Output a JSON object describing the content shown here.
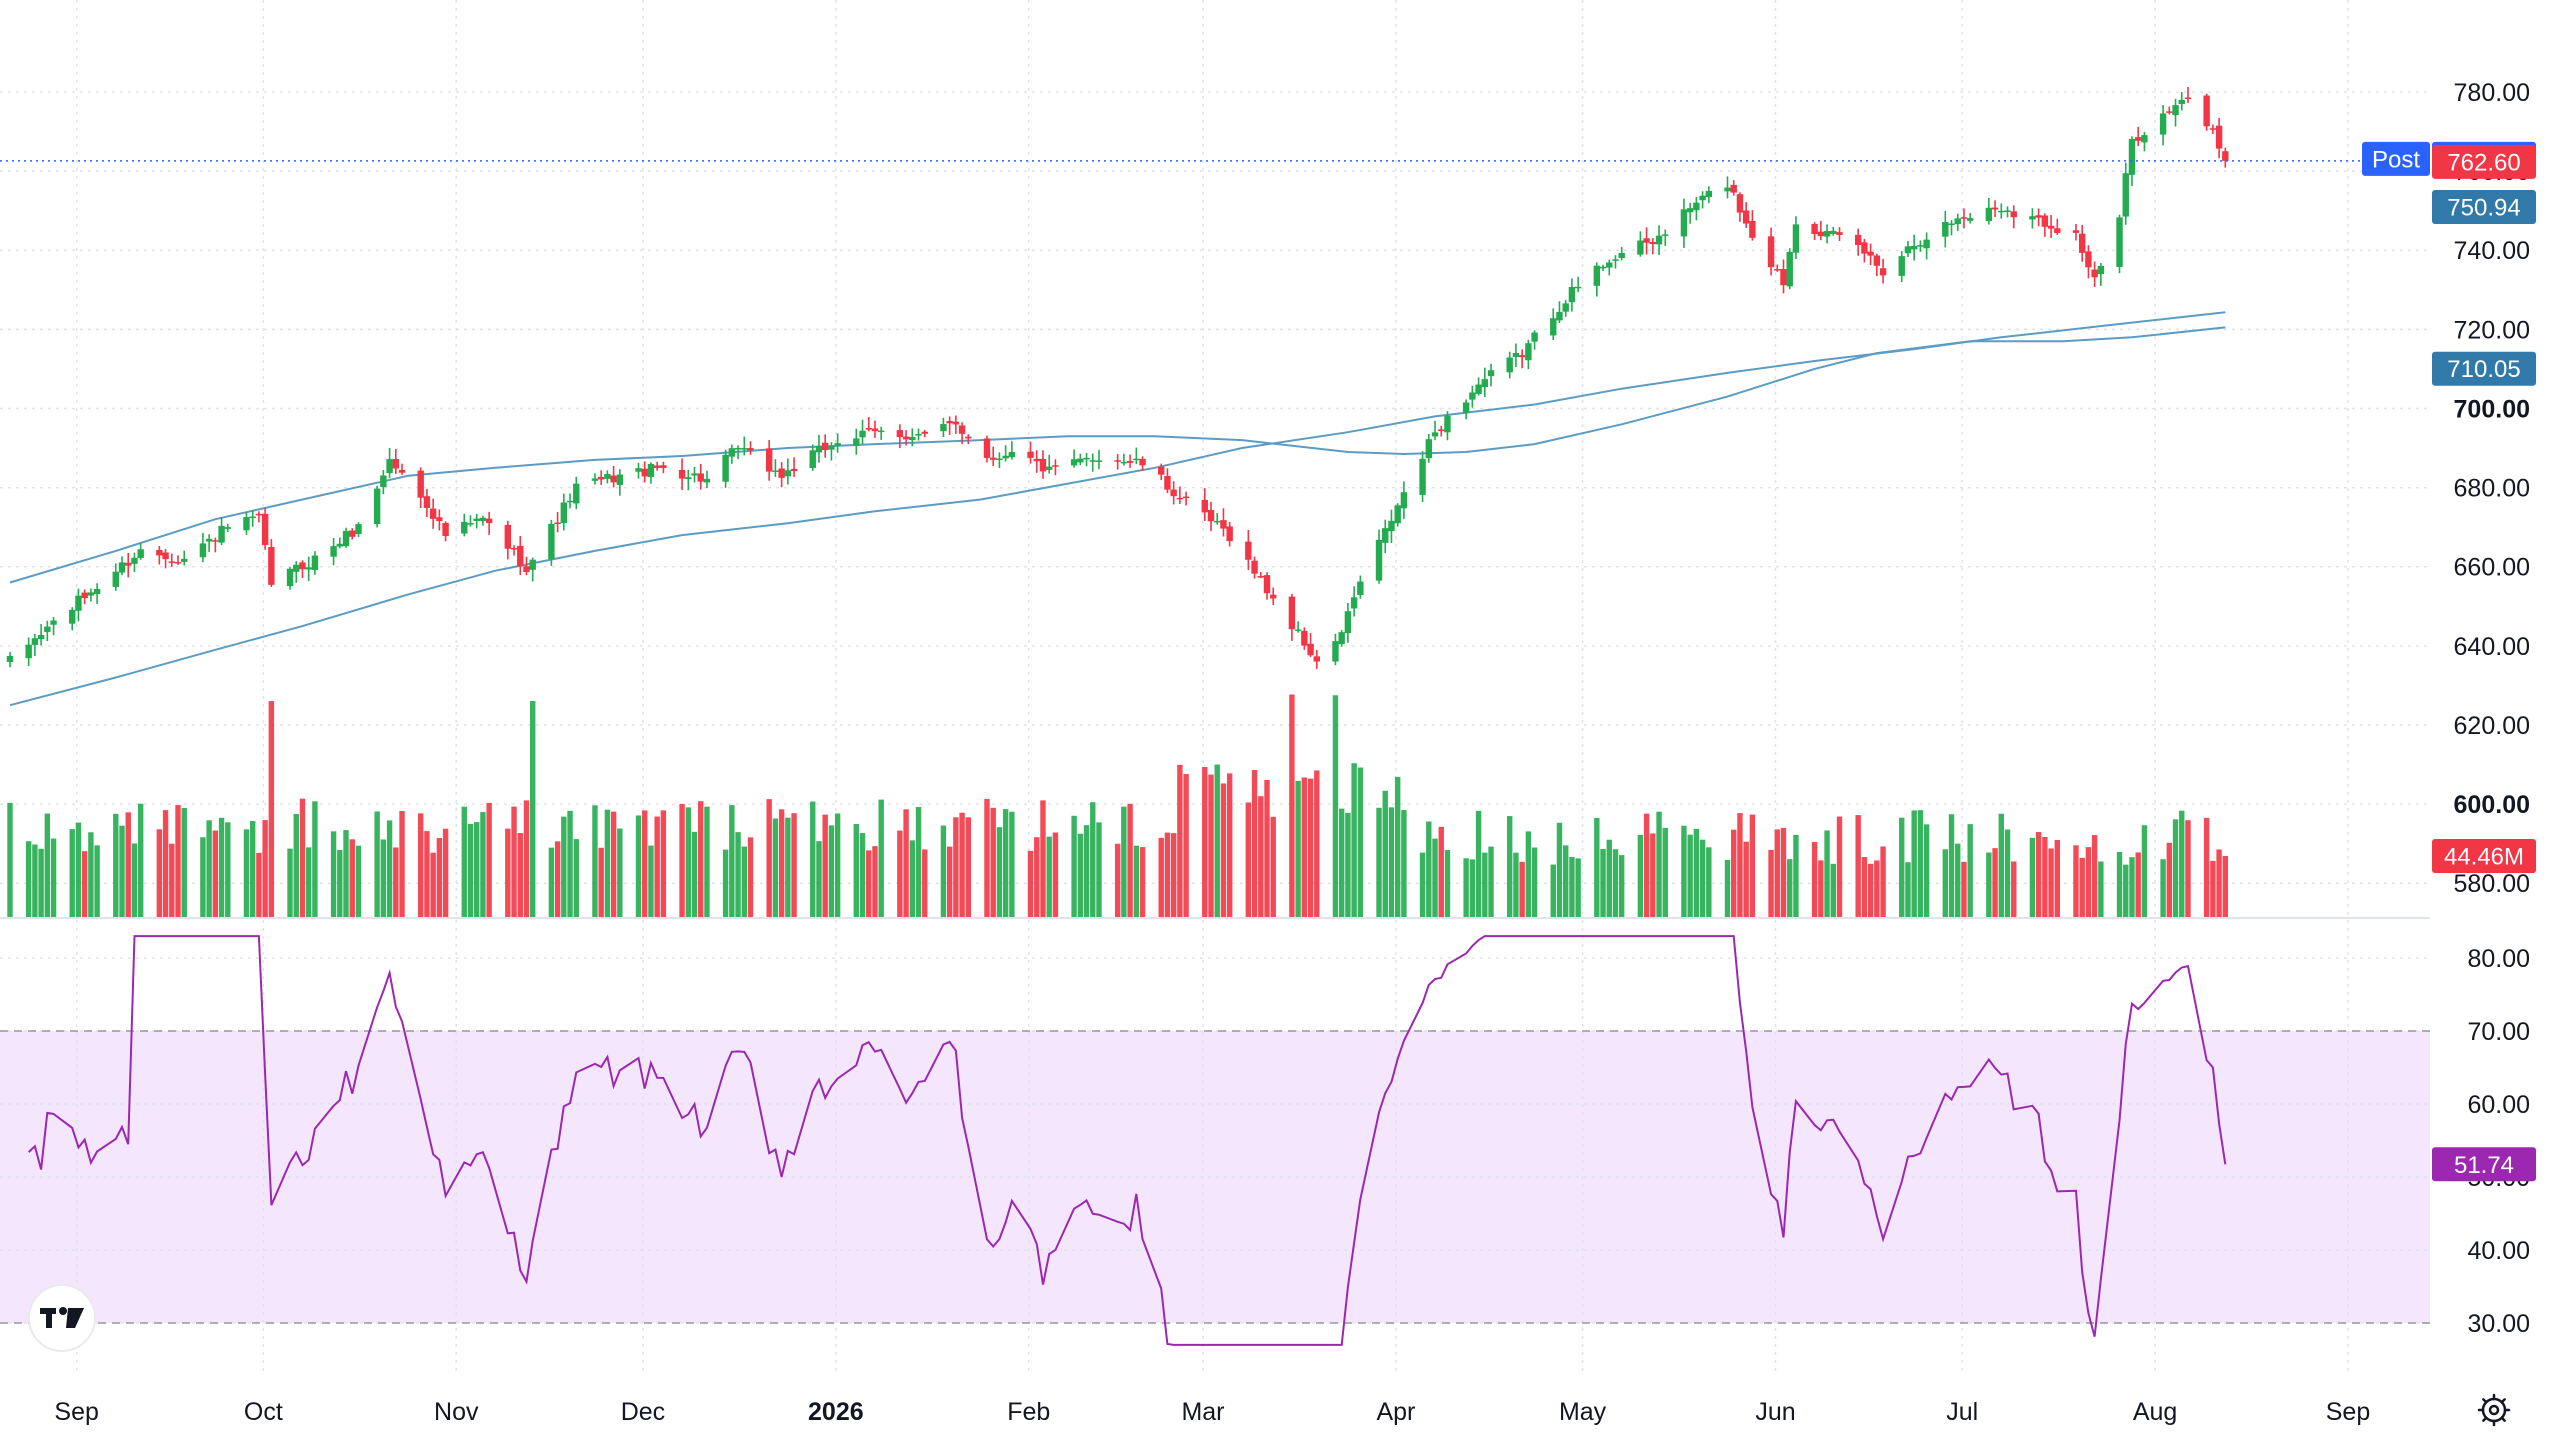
{
  "chart_data": [
    {
      "type": "candlestick",
      "title": "",
      "y_axis": {
        "ticks": [
          "780.00",
          "760.00",
          "740.00",
          "720.00",
          "700.00",
          "680.00",
          "660.00",
          "640.00",
          "620.00",
          "600.00",
          "580.00"
        ],
        "tick_values": [
          780,
          760,
          740,
          720,
          700,
          680,
          660,
          640,
          620,
          600,
          580
        ],
        "bold_ticks": [
          "700.00",
          "600.00"
        ],
        "ylim": [
          570,
          787
        ]
      },
      "x_axis": {
        "labels": [
          "Sep",
          "Oct",
          "Nov",
          "Dec",
          "2026",
          "Feb",
          "Mar",
          "Apr",
          "May",
          "Jun",
          "Jul",
          "Aug",
          "Sep"
        ],
        "bold_labels": [
          "2026"
        ],
        "start_date": "2025-08-29",
        "end_date": "2026-09-19"
      },
      "price_anchors": [
        [
          "2025-08-29",
          636
        ],
        [
          "2025-09-05",
          646
        ],
        [
          "2025-09-12",
          655
        ],
        [
          "2025-09-19",
          664
        ],
        [
          "2025-09-26",
          662
        ],
        [
          "2025-10-03",
          670
        ],
        [
          "2025-10-08",
          672
        ],
        [
          "2025-10-10",
          656
        ],
        [
          "2025-10-17",
          662
        ],
        [
          "2025-10-24",
          670
        ],
        [
          "2025-10-29",
          687
        ],
        [
          "2025-11-04",
          676
        ],
        [
          "2025-11-07",
          668
        ],
        [
          "2025-11-13",
          672
        ],
        [
          "2025-11-20",
          660
        ],
        [
          "2025-11-21",
          662
        ],
        [
          "2025-11-28",
          680
        ],
        [
          "2025-12-05",
          683
        ],
        [
          "2025-12-12",
          685
        ],
        [
          "2025-12-19",
          682
        ],
        [
          "2025-12-24",
          690
        ],
        [
          "2025-12-31",
          683
        ],
        [
          "2026-01-09",
          692
        ],
        [
          "2026-01-16",
          694
        ],
        [
          "2026-01-23",
          693
        ],
        [
          "2026-01-28",
          696
        ],
        [
          "2026-02-03",
          687
        ],
        [
          "2026-02-06",
          690
        ],
        [
          "2026-02-12",
          684
        ],
        [
          "2026-02-20",
          688
        ],
        [
          "2026-02-27",
          686
        ],
        [
          "2026-03-06",
          676
        ],
        [
          "2026-03-13",
          668
        ],
        [
          "2026-03-20",
          652
        ],
        [
          "2026-03-27",
          636
        ],
        [
          "2026-03-30",
          640
        ],
        [
          "2026-04-03",
          656
        ],
        [
          "2026-04-08",
          672
        ],
        [
          "2026-04-15",
          694
        ],
        [
          "2026-04-22",
          706
        ],
        [
          "2026-04-29",
          714
        ],
        [
          "2026-05-06",
          728
        ],
        [
          "2026-05-13",
          738
        ],
        [
          "2026-05-20",
          742
        ],
        [
          "2026-05-27",
          752
        ],
        [
          "2026-06-01",
          757
        ],
        [
          "2026-06-05",
          744
        ],
        [
          "2026-06-10",
          732
        ],
        [
          "2026-06-12",
          748
        ],
        [
          "2026-06-17",
          744
        ],
        [
          "2026-06-22",
          741
        ],
        [
          "2026-06-26",
          735
        ],
        [
          "2026-07-01",
          742
        ],
        [
          "2026-07-08",
          748
        ],
        [
          "2026-07-15",
          751
        ],
        [
          "2026-07-22",
          747
        ],
        [
          "2026-07-27",
          744
        ],
        [
          "2026-07-30",
          732
        ],
        [
          "2026-08-03",
          748
        ],
        [
          "2026-08-05",
          768
        ],
        [
          "2026-08-10",
          774
        ],
        [
          "2026-08-14",
          778
        ],
        [
          "2026-08-18",
          770
        ],
        [
          "2026-08-20",
          762.6
        ]
      ],
      "moving_averages": [
        {
          "name": "",
          "color": "#5b9cc4",
          "points": [
            [
              "2025-08-29",
              625
            ],
            [
              "2025-09-15",
              632
            ],
            [
              "2025-10-01",
              639
            ],
            [
              "2025-10-15",
              645
            ],
            [
              "2025-11-01",
              653
            ],
            [
              "2025-11-15",
              659
            ],
            [
              "2025-12-01",
              664
            ],
            [
              "2025-12-15",
              668
            ],
            [
              "2026-01-01",
              671
            ],
            [
              "2026-01-15",
              674
            ],
            [
              "2026-02-01",
              677
            ],
            [
              "2026-02-15",
              681
            ],
            [
              "2026-03-01",
              685
            ],
            [
              "2026-03-15",
              690
            ],
            [
              "2026-04-01",
              694
            ],
            [
              "2026-04-15",
              698
            ],
            [
              "2026-05-01",
              701
            ],
            [
              "2026-05-15",
              705
            ],
            [
              "2026-06-01",
              709
            ],
            [
              "2026-06-15",
              712
            ],
            [
              "2026-07-01",
              715
            ],
            [
              "2026-07-15",
              718
            ],
            [
              "2026-08-01",
              721
            ],
            [
              "2026-08-20",
              724.3
            ]
          ]
        },
        {
          "name": "",
          "color": "#5b9cc4",
          "points": [
            [
              "2025-08-29",
              656
            ],
            [
              "2025-09-15",
              664
            ],
            [
              "2025-10-01",
              672
            ],
            [
              "2025-10-15",
              677
            ],
            [
              "2025-11-01",
              683
            ],
            [
              "2025-11-15",
              685
            ],
            [
              "2025-12-01",
              687
            ],
            [
              "2025-12-15",
              688
            ],
            [
              "2026-01-01",
              690
            ],
            [
              "2026-01-15",
              691
            ],
            [
              "2026-02-01",
              692
            ],
            [
              "2026-02-15",
              693
            ],
            [
              "2026-03-01",
              693
            ],
            [
              "2026-03-15",
              692
            ],
            [
              "2026-04-01",
              689
            ],
            [
              "2026-04-10",
              688.5
            ],
            [
              "2026-04-20",
              689
            ],
            [
              "2026-05-01",
              691
            ],
            [
              "2026-05-15",
              696
            ],
            [
              "2026-06-01",
              703
            ],
            [
              "2026-06-15",
              710
            ],
            [
              "2026-06-25",
              714
            ],
            [
              "2026-07-10",
              717
            ],
            [
              "2026-07-25",
              717
            ],
            [
              "2026-08-05",
              718
            ],
            [
              "2026-08-20",
              720.5
            ]
          ]
        }
      ],
      "price_tags": [
        {
          "label": "Post",
          "value": "762.84",
          "color": "#2962ff"
        },
        {
          "value": "762.60",
          "color": "#f23645"
        },
        {
          "value": "750.94",
          "color": "#3179a8"
        },
        {
          "value": "710.05",
          "color": "#3179a8"
        }
      ],
      "volume": {
        "last_value": "44.46M",
        "tag_color": "#f23645",
        "spike_dates": [
          "2025-10-10",
          "2025-11-21",
          "2026-03-23",
          "2026-03-30"
        ]
      },
      "colors": {
        "up": "#22ab4f",
        "down": "#f23645",
        "grid": "#e0e3eb",
        "last_price_line": "#2962ff"
      }
    },
    {
      "type": "line",
      "name": "RSI",
      "y_axis": {
        "ticks": [
          "80.00",
          "70.00",
          "60.00",
          "50.00",
          "40.00",
          "30.00"
        ],
        "tick_values": [
          80,
          70,
          60,
          50,
          40,
          30
        ],
        "ylim": [
          26,
          84
        ]
      },
      "band": {
        "upper": 70,
        "lower": 30,
        "fill": "#f3e6fd"
      },
      "line_color": "#9c27b0",
      "last_value": "51.74",
      "tag_color": "#9c27b0"
    }
  ],
  "icons": {
    "logo": "tradingview-logo-icon",
    "settings": "settings-icon"
  }
}
